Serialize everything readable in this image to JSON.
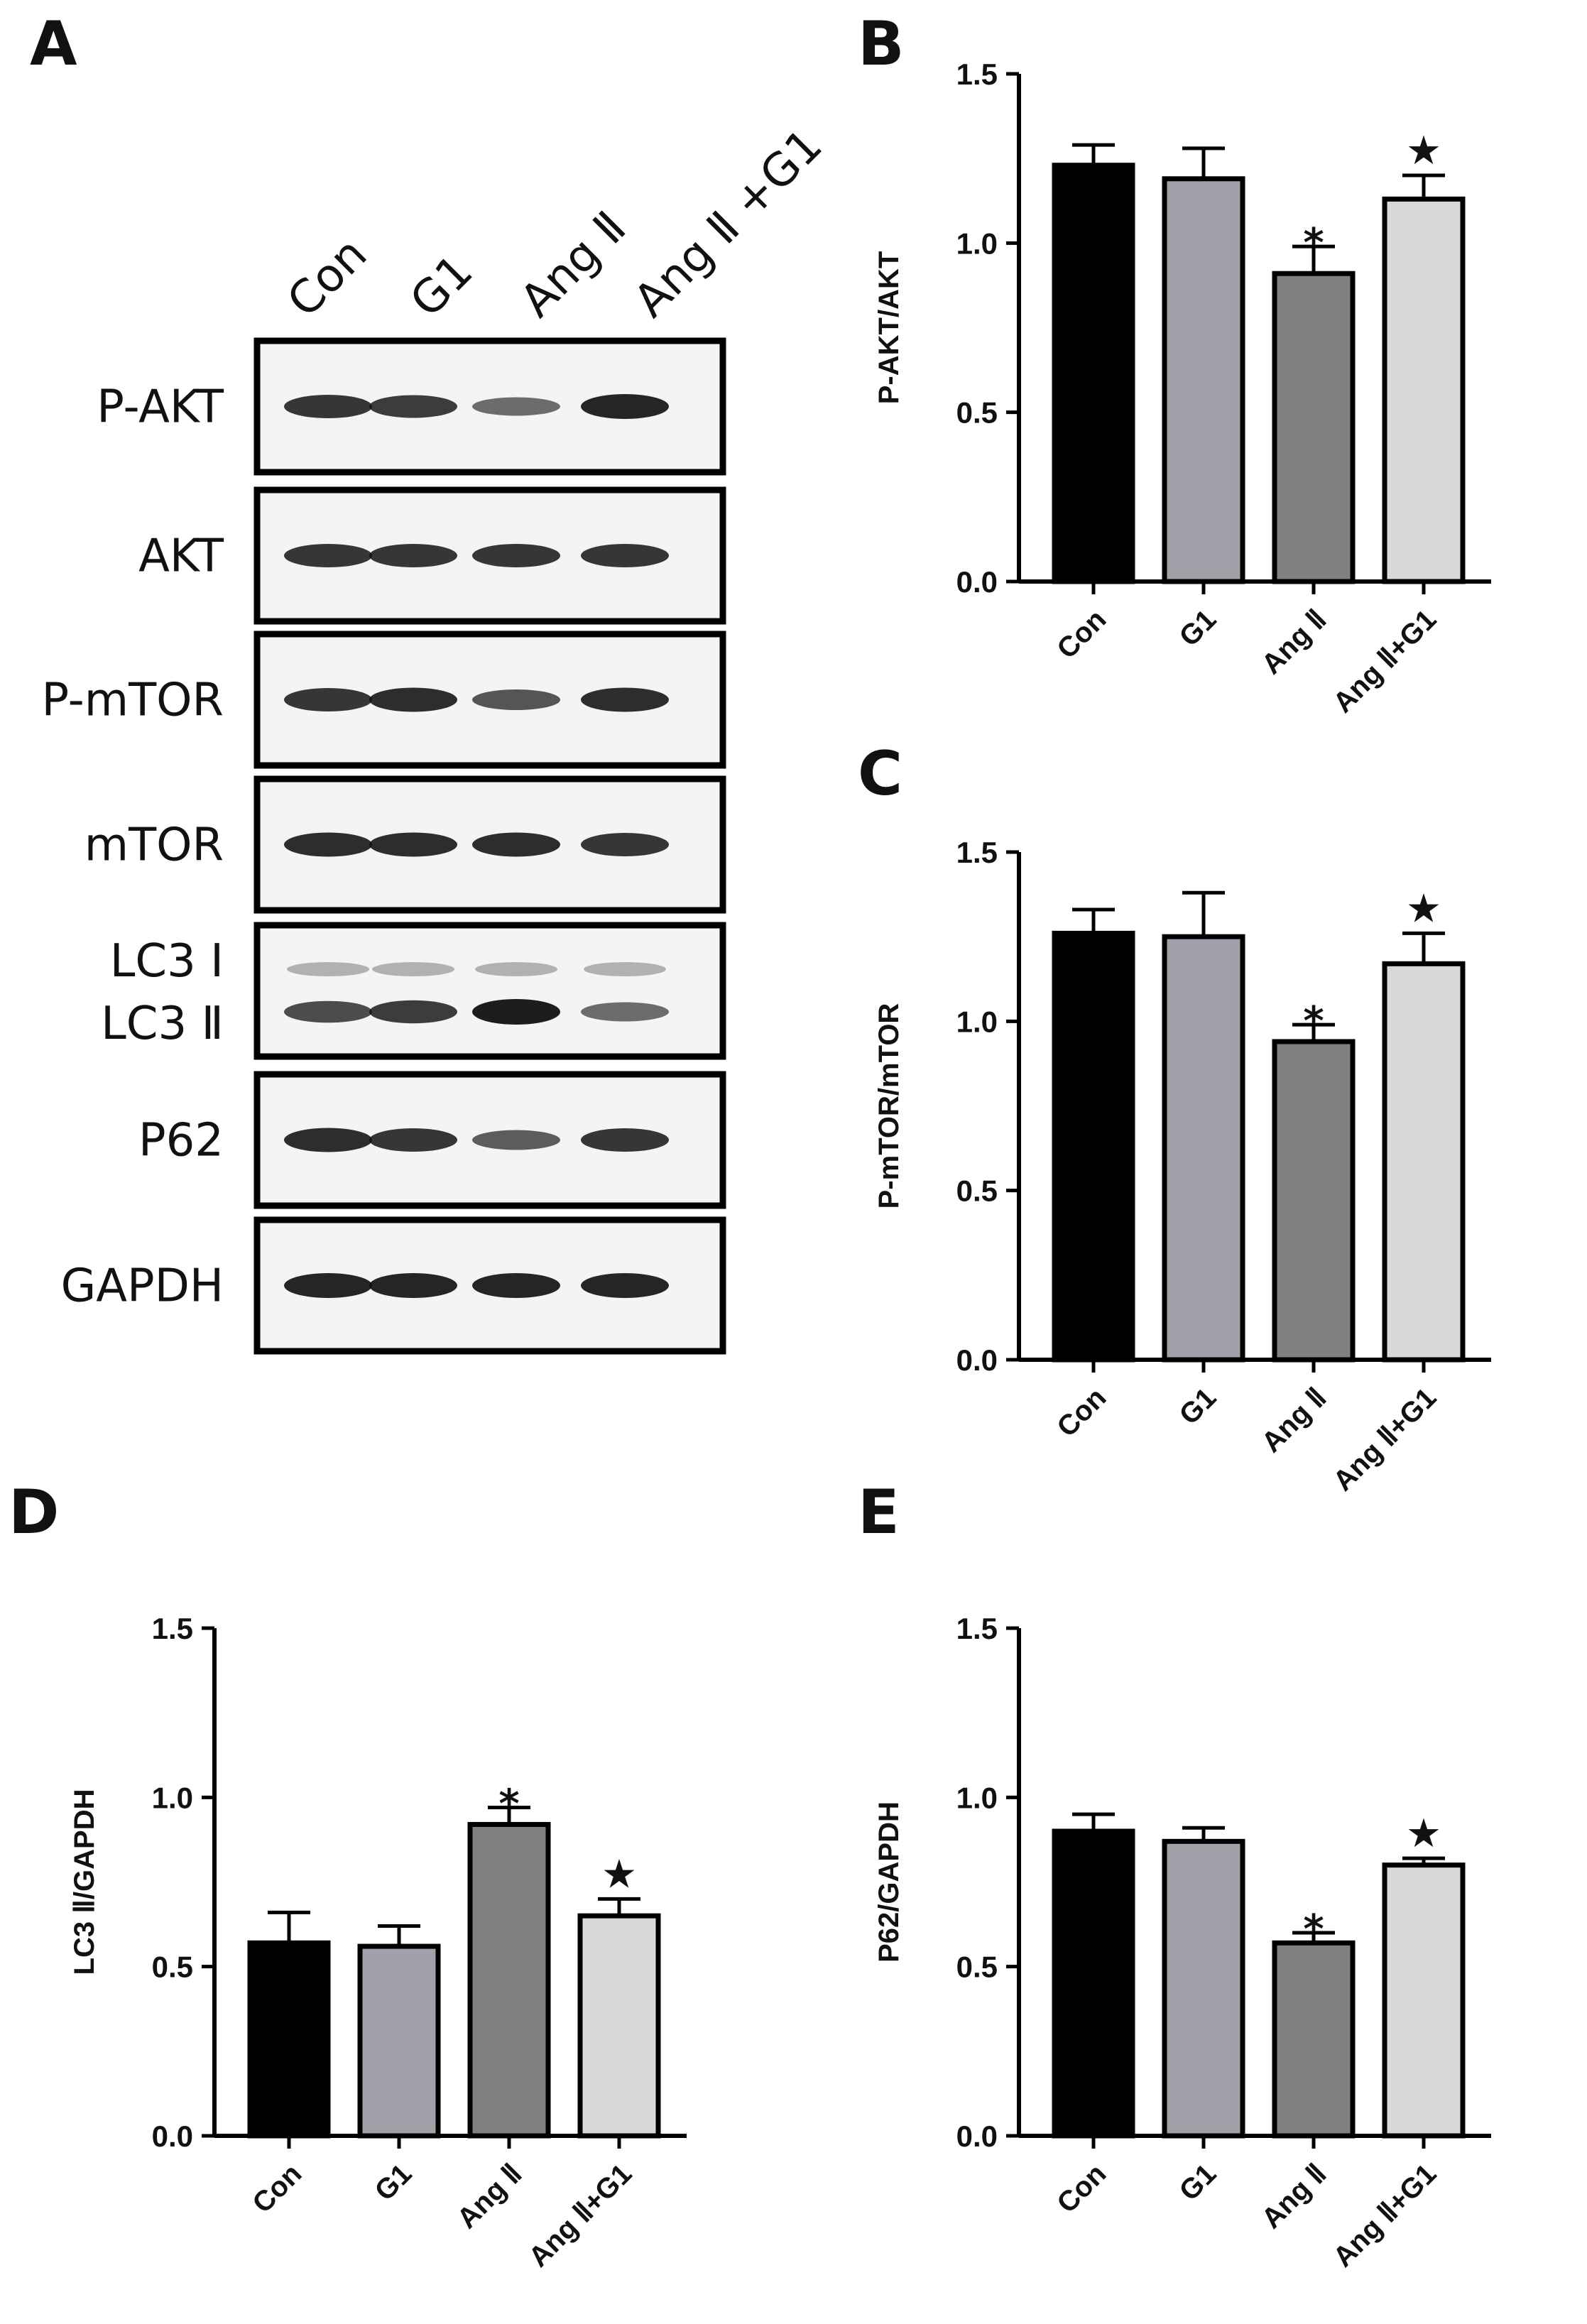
{
  "panels": {
    "A": "A",
    "B": "B",
    "C": "C",
    "D": "D",
    "E": "E"
  },
  "blot": {
    "lanes": [
      "Con",
      "G1",
      "Ang Ⅱ",
      "Ang Ⅱ +G1"
    ],
    "rows": [
      {
        "label": "P-AKT",
        "band_intensity": [
          0.85,
          0.8,
          0.5,
          0.95
        ]
      },
      {
        "label": "AKT",
        "band_intensity": [
          0.85,
          0.85,
          0.85,
          0.85
        ]
      },
      {
        "label": "P-mTOR",
        "band_intensity": [
          0.85,
          0.9,
          0.65,
          0.9
        ]
      },
      {
        "label": "mTOR",
        "band_intensity": [
          0.9,
          0.9,
          0.9,
          0.85
        ]
      },
      {
        "label": "LC3 Ⅰ",
        "label2": "LC3 Ⅱ",
        "band_intensity": [
          0.7,
          0.8,
          1.0,
          0.5
        ]
      },
      {
        "label": "P62",
        "band_intensity": [
          0.9,
          0.85,
          0.6,
          0.85
        ]
      },
      {
        "label": "GAPDH",
        "band_intensity": [
          0.95,
          0.95,
          0.95,
          0.95
        ]
      }
    ]
  },
  "chart_data": [
    {
      "panel": "B",
      "type": "bar",
      "categories": [
        "Con",
        "G1",
        "Ang Ⅱ",
        "Ang Ⅱ+G1"
      ],
      "values": [
        1.23,
        1.19,
        0.91,
        1.13
      ],
      "errors": [
        0.06,
        0.09,
        0.08,
        0.07
      ],
      "significance": [
        "",
        "",
        "*",
        "★"
      ],
      "ylabel": "P-AKT/AKT",
      "ylim": [
        0,
        1.5
      ],
      "yticks": [
        "0.0",
        "0.5",
        "1.0",
        "1.5"
      ],
      "colors": [
        "#000000",
        "#a0a0a8",
        "#808080",
        "#d8d8d8"
      ]
    },
    {
      "panel": "C",
      "type": "bar",
      "categories": [
        "Con",
        "G1",
        "Ang Ⅱ",
        "Ang Ⅱ+G1"
      ],
      "values": [
        1.26,
        1.25,
        0.94,
        1.17
      ],
      "errors": [
        0.07,
        0.13,
        0.05,
        0.09
      ],
      "significance": [
        "",
        "",
        "*",
        "★"
      ],
      "ylabel": "P-mTOR/mTOR",
      "ylim": [
        0,
        1.5
      ],
      "yticks": [
        "0.0",
        "0.5",
        "1.0",
        "1.5"
      ],
      "colors": [
        "#000000",
        "#a0a0a8",
        "#808080",
        "#d8d8d8"
      ]
    },
    {
      "panel": "D",
      "type": "bar",
      "categories": [
        "Con",
        "G1",
        "Ang Ⅱ",
        "Ang Ⅱ+G1"
      ],
      "values": [
        0.57,
        0.56,
        0.92,
        0.65
      ],
      "errors": [
        0.09,
        0.06,
        0.05,
        0.05
      ],
      "significance": [
        "",
        "",
        "*",
        "★"
      ],
      "ylabel": "LC3 Ⅱ/GAPDH",
      "ylim": [
        0,
        1.5
      ],
      "yticks": [
        "0.0",
        "0.5",
        "1.0",
        "1.5"
      ],
      "colors": [
        "#000000",
        "#a0a0a8",
        "#808080",
        "#d8d8d8"
      ]
    },
    {
      "panel": "E",
      "type": "bar",
      "categories": [
        "Con",
        "G1",
        "Ang Ⅱ",
        "Ang Ⅱ+G1"
      ],
      "values": [
        0.9,
        0.87,
        0.57,
        0.8
      ],
      "errors": [
        0.05,
        0.04,
        0.03,
        0.02
      ],
      "significance": [
        "",
        "",
        "*",
        "★"
      ],
      "ylabel": "P62/GAPDH",
      "ylim": [
        0,
        1.5
      ],
      "yticks": [
        "0.0",
        "0.5",
        "1.0",
        "1.5"
      ],
      "colors": [
        "#000000",
        "#a0a0a8",
        "#808080",
        "#d8d8d8"
      ]
    }
  ]
}
